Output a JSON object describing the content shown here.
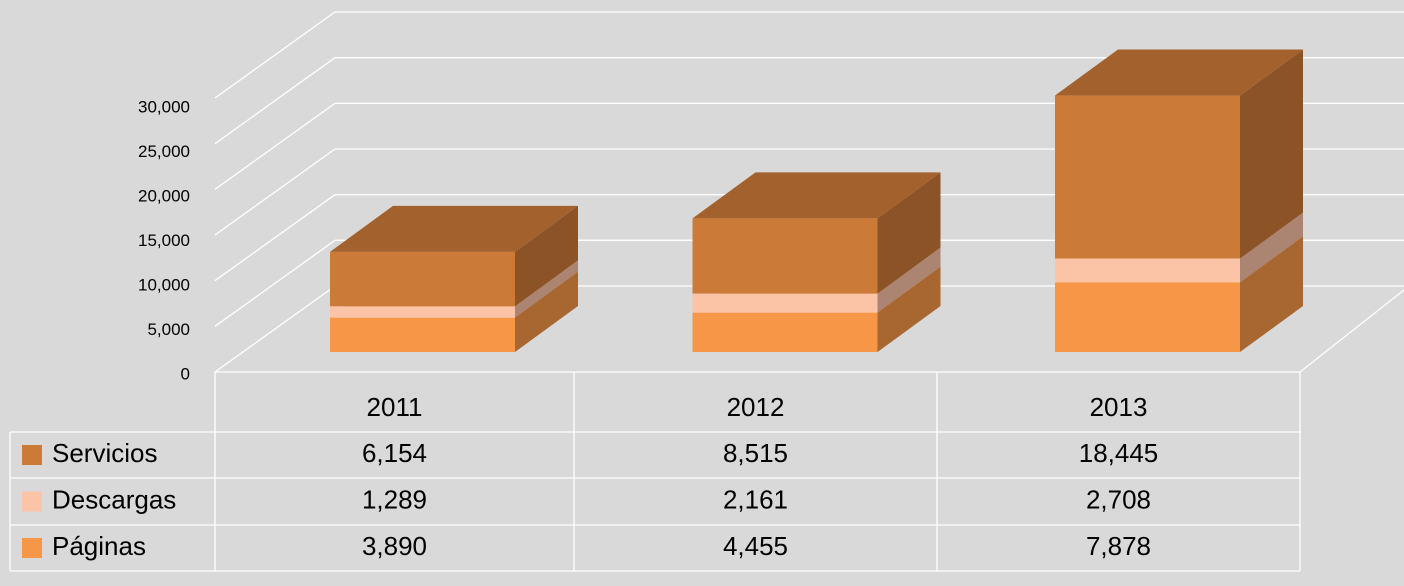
{
  "chart_data": {
    "type": "bar3d_stacked",
    "categories": [
      "2011",
      "2012",
      "2013"
    ],
    "series": [
      {
        "name": "Páginas",
        "color": "#f79646",
        "values": [
          3890,
          4455,
          7878
        ],
        "value_labels": [
          "3,890",
          "4,455",
          "7,878"
        ]
      },
      {
        "name": "Descargas",
        "color": "#fbc4a6",
        "values": [
          1289,
          2161,
          2708
        ],
        "value_labels": [
          "1,289",
          "2,161",
          "2,708"
        ]
      },
      {
        "name": "Servicios",
        "color": "#cc7a38",
        "values": [
          6154,
          8515,
          18445
        ],
        "value_labels": [
          "6,154",
          "8,515",
          "18,445"
        ]
      }
    ],
    "ylim": [
      0,
      30000
    ],
    "yticks": [
      {
        "value": 0,
        "label": "0"
      },
      {
        "value": 5000,
        "label": "5,000"
      },
      {
        "value": 10000,
        "label": "10,000"
      },
      {
        "value": 15000,
        "label": "15,000"
      },
      {
        "value": 20000,
        "label": "20,000"
      },
      {
        "value": 25000,
        "label": "25,000"
      },
      {
        "value": 30000,
        "label": "30,000"
      }
    ],
    "grid": true
  }
}
